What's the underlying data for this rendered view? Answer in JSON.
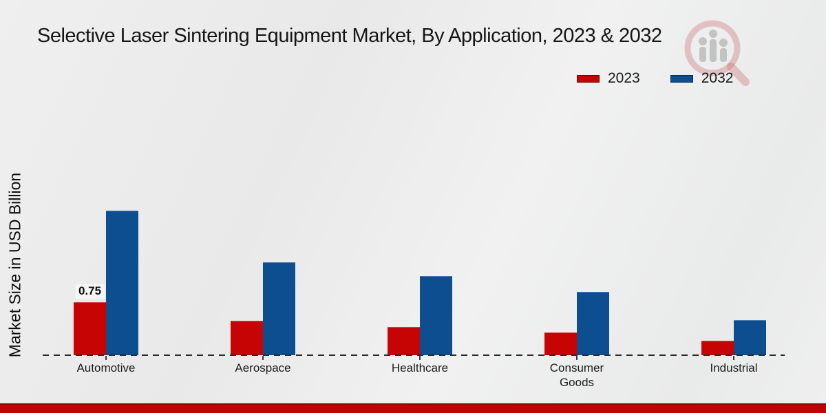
{
  "page_title": "Selective Laser Sintering Equipment Market, By Application, 2023 & 2032",
  "chart_data": {
    "type": "bar",
    "title": "Selective Laser Sintering Equipment Market, By Application, 2023 & 2032",
    "xlabel": "",
    "ylabel": "Market Size in USD Billion",
    "categories": [
      "Automotive",
      "Aerospace",
      "Healthcare",
      "Consumer Goods",
      "Industrial"
    ],
    "series": [
      {
        "name": "2023",
        "color": "#c70404",
        "values": [
          0.75,
          0.49,
          0.4,
          0.32,
          0.2
        ]
      },
      {
        "name": "2032",
        "color": "#0d4e90",
        "values": [
          2.04,
          1.31,
          1.12,
          0.9,
          0.5
        ]
      }
    ],
    "annotations": [
      {
        "series": "2023",
        "category": "Automotive",
        "text": "0.75"
      }
    ],
    "ylim": [
      0,
      2.5
    ],
    "grid": false,
    "y_axis_ticks_visible": false,
    "baseline_style": "dashed",
    "legend_position": "top-right"
  },
  "legend": {
    "items": [
      {
        "label": "2023",
        "color": "#c70404"
      },
      {
        "label": "2032",
        "color": "#0d4e90"
      }
    ]
  },
  "branding": {
    "watermark_icon": "magnifier-bar-chart-logo",
    "footer_bar_color": "#bf0404",
    "watermark_ring_color": "rgba(201,106,106,0.35)",
    "watermark_bars_color": "rgba(125,125,130,0.38)"
  }
}
